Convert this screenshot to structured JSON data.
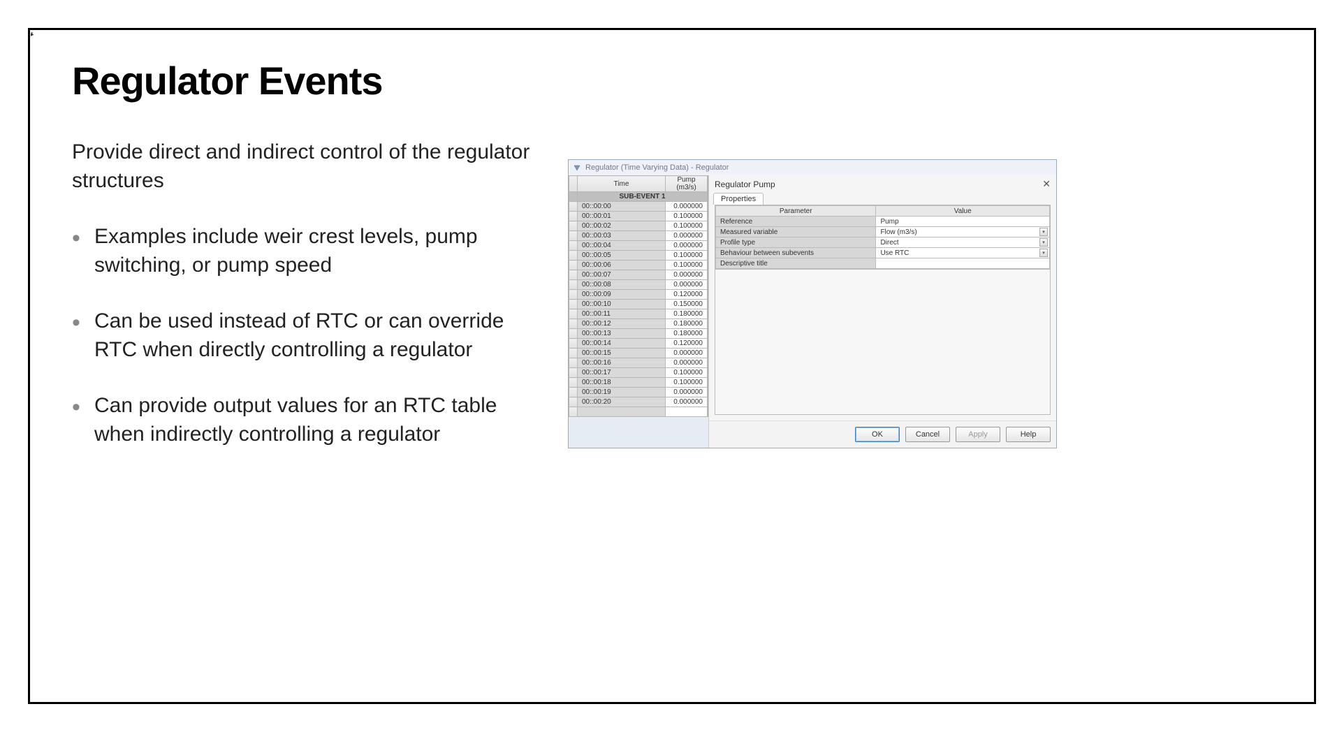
{
  "slide": {
    "title": "Regulator Events",
    "intro": "Provide direct and indirect control of the regulator structures",
    "bullets": [
      "Examples include weir crest levels, pump switching, or pump speed",
      "Can be used instead of RTC or can override RTC when directly controlling a regulator",
      "Can provide output values for an RTC table when indirectly controlling a regulator"
    ]
  },
  "window": {
    "title": "Regulator (Time Varying Data) - Regulator",
    "grid": {
      "col_time": "Time",
      "col_value": "Pump (m3/s)",
      "subevent_label": "SUB-EVENT 1",
      "rows": [
        {
          "t": "00::00:00",
          "v": "0.000000"
        },
        {
          "t": "00::00:01",
          "v": "0.100000"
        },
        {
          "t": "00::00:02",
          "v": "0.100000"
        },
        {
          "t": "00::00:03",
          "v": "0.000000"
        },
        {
          "t": "00::00:04",
          "v": "0.000000"
        },
        {
          "t": "00::00:05",
          "v": "0.100000"
        },
        {
          "t": "00::00:06",
          "v": "0.100000"
        },
        {
          "t": "00::00:07",
          "v": "0.000000"
        },
        {
          "t": "00::00:08",
          "v": "0.000000"
        },
        {
          "t": "00::00:09",
          "v": "0.120000"
        },
        {
          "t": "00::00:10",
          "v": "0.150000"
        },
        {
          "t": "00::00:11",
          "v": "0.180000"
        },
        {
          "t": "00::00:12",
          "v": "0.180000"
        },
        {
          "t": "00::00:13",
          "v": "0.180000"
        },
        {
          "t": "00::00:14",
          "v": "0.120000"
        },
        {
          "t": "00::00:15",
          "v": "0.000000"
        },
        {
          "t": "00::00:16",
          "v": "0.000000"
        },
        {
          "t": "00::00:17",
          "v": "0.100000"
        },
        {
          "t": "00::00:18",
          "v": "0.100000"
        },
        {
          "t": "00::00:19",
          "v": "0.000000"
        },
        {
          "t": "00::00:20",
          "v": "0.000000"
        }
      ]
    },
    "panel": {
      "title": "Regulator Pump",
      "tab": "Properties",
      "param_header": "Parameter",
      "value_header": "Value",
      "props": [
        {
          "param": "Reference",
          "value": "Pump",
          "dd": false
        },
        {
          "param": "Measured variable",
          "value": "Flow (m3/s)",
          "dd": true
        },
        {
          "param": "Profile type",
          "value": "Direct",
          "dd": true
        },
        {
          "param": "Behaviour between subevents",
          "value": "Use RTC",
          "dd": true
        },
        {
          "param": "Descriptive title",
          "value": "",
          "dd": false
        }
      ],
      "buttons": {
        "ok": "OK",
        "cancel": "Cancel",
        "apply": "Apply",
        "help": "Help"
      }
    }
  },
  "colors": {
    "window_border": "#9aaabf",
    "window_bg_top": "#eef2f8",
    "window_bg_bot": "#e6ecf4",
    "grid_line": "#b8b8b8",
    "time_cell_bg": "#d9d9d9",
    "param_cell_bg": "#d7d7d7"
  }
}
